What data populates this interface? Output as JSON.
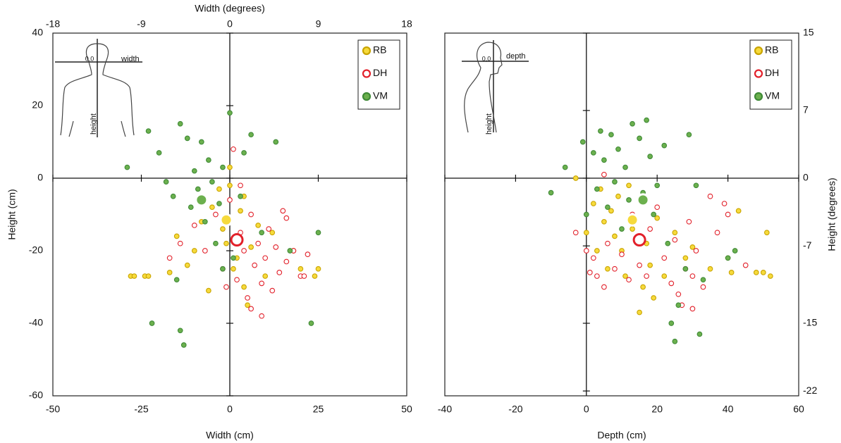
{
  "chart_data": [
    {
      "type": "scatter",
      "xlabel": "Width (cm)",
      "ylabel": "Height (cm)",
      "x2label": "Width (degrees)",
      "xlim": [
        -50,
        50
      ],
      "xticks": [
        -50,
        -25,
        0,
        25,
        50
      ],
      "ylim": [
        -60,
        40
      ],
      "yticks": [
        -60,
        -40,
        -20,
        0,
        20,
        40
      ],
      "x2lim": [
        -18,
        18
      ],
      "x2ticks": [
        -18,
        -9,
        0,
        9,
        18
      ],
      "legend": "upper right",
      "inset": {
        "origin": "0,0",
        "horizontal": "width",
        "vertical": "height"
      },
      "series": [
        {
          "name": "RB",
          "facecolor": "#f6da3c",
          "edgecolor": "#c9a400",
          "x": [
            -28,
            -27,
            -24,
            -23,
            -17,
            -15,
            -12,
            -10,
            -8,
            -5,
            -3,
            -2,
            0,
            0,
            1,
            2,
            3,
            4,
            5,
            6,
            8,
            10,
            12,
            18,
            20,
            24,
            25,
            -6,
            -1,
            4
          ],
          "y": [
            -27,
            -27,
            -27,
            -27,
            -26,
            -16,
            -24,
            -20,
            -12,
            -8,
            -3,
            -14,
            -2,
            3,
            -25,
            -22,
            -9,
            -30,
            -35,
            -19,
            -13,
            -27,
            -15,
            -20,
            -25,
            -27,
            -25,
            -31,
            -18,
            -5
          ],
          "mean_x": -1,
          "mean_y": -11.5
        },
        {
          "name": "DH",
          "facecolor": "#ffffff",
          "edgecolor": "#e2202a",
          "x": [
            -17,
            -14,
            -10,
            -7,
            -4,
            -2,
            0,
            1,
            2,
            3,
            4,
            5,
            6,
            7,
            8,
            9,
            10,
            11,
            12,
            13,
            14,
            15,
            16,
            18,
            20,
            22,
            21,
            6,
            9,
            -1,
            3,
            16
          ],
          "y": [
            -22,
            -18,
            -13,
            -20,
            -10,
            -25,
            -6,
            8,
            -28,
            -15,
            -20,
            -33,
            -10,
            -24,
            -18,
            -29,
            -22,
            -14,
            -31,
            -19,
            -26,
            -9,
            -23,
            -20,
            -27,
            -21,
            -27,
            -36,
            -38,
            -30,
            -2,
            -11
          ],
          "mean_x": 2,
          "mean_y": -17
        },
        {
          "name": "VM",
          "facecolor": "#6cb04e",
          "edgecolor": "#3f8a37",
          "x": [
            -29,
            -23,
            -22,
            -20,
            -18,
            -16,
            -14,
            -14,
            -13,
            -12,
            -11,
            -10,
            -9,
            -8,
            -7,
            -6,
            -5,
            -4,
            -3,
            -2,
            0,
            1,
            3,
            6,
            9,
            13,
            17,
            23,
            25,
            -15,
            -2,
            4
          ],
          "y": [
            3,
            13,
            -40,
            7,
            -1,
            -5,
            15,
            -42,
            -46,
            11,
            -8,
            2,
            -3,
            10,
            -12,
            5,
            -1,
            -18,
            -7,
            3,
            18,
            -22,
            -5,
            12,
            -15,
            10,
            -20,
            -40,
            -15,
            -28,
            -25,
            7
          ],
          "mean_x": -8,
          "mean_y": -6
        }
      ]
    },
    {
      "type": "scatter",
      "xlabel": "Depth (cm)",
      "y2label": "Height (degrees)",
      "xlim": [
        -40,
        60
      ],
      "xticks": [
        -40,
        -20,
        0,
        20,
        40,
        60
      ],
      "ylim": [
        -60,
        40
      ],
      "y2lim": [
        -22.5,
        15
      ],
      "y2ticks": [
        15,
        7,
        0,
        -7,
        -15,
        -22
      ],
      "legend": "upper right",
      "inset": {
        "origin": "0,0",
        "horizontal": "depth",
        "vertical": "height"
      },
      "series": [
        {
          "name": "RB",
          "facecolor": "#f6da3c",
          "edgecolor": "#c9a400",
          "x": [
            -3,
            0,
            2,
            3,
            4,
            5,
            6,
            7,
            8,
            9,
            10,
            11,
            12,
            13,
            15,
            16,
            17,
            18,
            19,
            20,
            22,
            25,
            28,
            30,
            35,
            40,
            43,
            48,
            50,
            51,
            52,
            41
          ],
          "y": [
            0,
            -15,
            -7,
            -20,
            -3,
            -12,
            -25,
            -9,
            -16,
            -5,
            -20,
            -27,
            -2,
            -14,
            -37,
            -30,
            -18,
            -24,
            -33,
            -11,
            -27,
            -15,
            -22,
            -19,
            -25,
            -22,
            -9,
            -26,
            -26,
            -15,
            -27,
            -26
          ],
          "mean_x": 13,
          "mean_y": -11.5
        },
        {
          "name": "DH",
          "facecolor": "#ffffff",
          "edgecolor": "#e2202a",
          "x": [
            -3,
            0,
            1,
            2,
            3,
            5,
            6,
            8,
            10,
            12,
            13,
            15,
            17,
            18,
            20,
            22,
            24,
            25,
            26,
            28,
            29,
            30,
            31,
            33,
            35,
            37,
            39,
            40,
            45,
            30,
            27,
            5
          ],
          "y": [
            -15,
            -20,
            -26,
            -22,
            -27,
            -30,
            -18,
            -25,
            -21,
            -28,
            -10,
            -24,
            -27,
            -14,
            -8,
            -22,
            -29,
            -17,
            -32,
            -25,
            -12,
            -27,
            -20,
            -30,
            -5,
            -15,
            -7,
            -10,
            -24,
            -36,
            -35,
            1
          ],
          "mean_x": 15,
          "mean_y": -17
        },
        {
          "name": "VM",
          "facecolor": "#6cb04e",
          "edgecolor": "#3f8a37",
          "x": [
            -10,
            -6,
            -1,
            0,
            2,
            3,
            4,
            5,
            6,
            7,
            8,
            9,
            10,
            11,
            12,
            13,
            15,
            16,
            17,
            18,
            19,
            20,
            22,
            23,
            24,
            25,
            26,
            28,
            29,
            31,
            32,
            33,
            40,
            42
          ],
          "y": [
            -4,
            3,
            10,
            -10,
            7,
            -3,
            13,
            5,
            -8,
            12,
            -1,
            8,
            -14,
            3,
            -6,
            15,
            11,
            -4,
            16,
            6,
            -10,
            -2,
            9,
            -18,
            -40,
            -45,
            -35,
            -25,
            12,
            -2,
            -43,
            -28,
            -22,
            -20
          ],
          "mean_x": 16,
          "mean_y": -6
        }
      ]
    }
  ]
}
